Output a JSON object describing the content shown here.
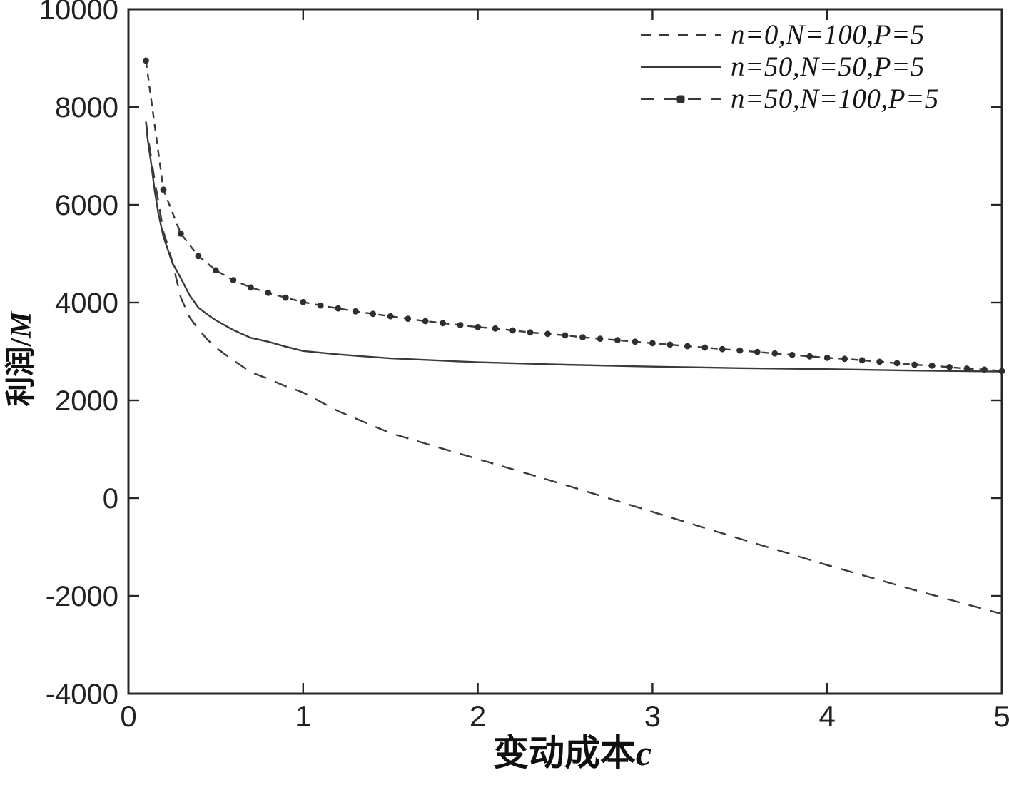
{
  "page": {
    "background": "#ffffff"
  },
  "chart_data": {
    "type": "line",
    "title": "",
    "xlabel": "变动成本c",
    "xlabel_cjk": "变动成本",
    "xlabel_var": "c",
    "ylabel": "利润/M",
    "ylabel_cjk": "利润/",
    "ylabel_var": "M",
    "xlim": [
      0,
      5
    ],
    "ylim": [
      -4000,
      10000
    ],
    "x_ticks": [
      "0",
      "1",
      "2",
      "3",
      "4",
      "5"
    ],
    "x_tick_values": [
      0,
      1,
      2,
      3,
      4,
      5
    ],
    "y_ticks": [
      "10000",
      "8000",
      "6000",
      "4000",
      "2000",
      "0",
      "-2000",
      "-4000"
    ],
    "y_tick_values": [
      10000,
      8000,
      6000,
      4000,
      2000,
      0,
      -2000,
      -4000
    ],
    "grid": false,
    "legend_position": "top-right",
    "colors": {
      "line": "#3a3a3a",
      "axis": "#262626",
      "tick_text": "#222222",
      "marker": "#2e2e2e"
    },
    "series": [
      {
        "name": "n=0,N=100,P=5",
        "style": "dashed",
        "marker": "none",
        "points": [
          [
            0.1,
            7700
          ],
          [
            0.12,
            7200
          ],
          [
            0.15,
            6500
          ],
          [
            0.17,
            6100
          ],
          [
            0.2,
            5450
          ],
          [
            0.22,
            5220
          ],
          [
            0.25,
            4850
          ],
          [
            0.3,
            4100
          ],
          [
            0.35,
            3700
          ],
          [
            0.4,
            3460
          ],
          [
            0.45,
            3250
          ],
          [
            0.5,
            3080
          ],
          [
            0.6,
            2820
          ],
          [
            0.7,
            2580
          ],
          [
            0.8,
            2440
          ],
          [
            0.9,
            2290
          ],
          [
            1.0,
            2160
          ],
          [
            1.2,
            1780
          ],
          [
            1.5,
            1330
          ],
          [
            1.8,
            1010
          ],
          [
            2.0,
            800
          ],
          [
            2.2,
            590
          ],
          [
            2.5,
            270
          ],
          [
            3.0,
            -280
          ],
          [
            3.5,
            -830
          ],
          [
            4.0,
            -1370
          ],
          [
            4.5,
            -1880
          ],
          [
            5.0,
            -2370
          ]
        ]
      },
      {
        "name": "n=50,N=50,P=5",
        "style": "solid",
        "marker": "none",
        "points": [
          [
            0.1,
            7700
          ],
          [
            0.11,
            7350
          ],
          [
            0.13,
            6850
          ],
          [
            0.15,
            6300
          ],
          [
            0.17,
            5850
          ],
          [
            0.2,
            5350
          ],
          [
            0.25,
            4820
          ],
          [
            0.3,
            4500
          ],
          [
            0.35,
            4150
          ],
          [
            0.4,
            3900
          ],
          [
            0.45,
            3760
          ],
          [
            0.5,
            3640
          ],
          [
            0.6,
            3440
          ],
          [
            0.7,
            3280
          ],
          [
            0.8,
            3200
          ],
          [
            0.9,
            3100
          ],
          [
            1.0,
            3010
          ],
          [
            1.2,
            2940
          ],
          [
            1.5,
            2860
          ],
          [
            2.0,
            2780
          ],
          [
            2.5,
            2730
          ],
          [
            3.0,
            2690
          ],
          [
            3.5,
            2660
          ],
          [
            4.0,
            2640
          ],
          [
            4.5,
            2610
          ],
          [
            5.0,
            2590
          ]
        ]
      },
      {
        "name": "n=50,N=100,P=5",
        "style": "dash-marker",
        "marker": "dot",
        "points": [
          [
            0.1,
            8950
          ],
          [
            0.2,
            6310
          ],
          [
            0.3,
            5410
          ],
          [
            0.4,
            4950
          ],
          [
            0.5,
            4660
          ],
          [
            0.6,
            4460
          ],
          [
            0.7,
            4310
          ],
          [
            0.8,
            4200
          ],
          [
            0.9,
            4100
          ],
          [
            1.0,
            4010
          ],
          [
            1.1,
            3940
          ],
          [
            1.2,
            3880
          ],
          [
            1.3,
            3820
          ],
          [
            1.4,
            3770
          ],
          [
            1.5,
            3720
          ],
          [
            1.6,
            3670
          ],
          [
            1.7,
            3620
          ],
          [
            1.8,
            3580
          ],
          [
            1.9,
            3540
          ],
          [
            2.0,
            3500
          ],
          [
            2.1,
            3470
          ],
          [
            2.2,
            3430
          ],
          [
            2.3,
            3390
          ],
          [
            2.4,
            3360
          ],
          [
            2.5,
            3330
          ],
          [
            2.6,
            3290
          ],
          [
            2.7,
            3260
          ],
          [
            2.8,
            3230
          ],
          [
            2.9,
            3200
          ],
          [
            3.0,
            3170
          ],
          [
            3.1,
            3140
          ],
          [
            3.2,
            3110
          ],
          [
            3.3,
            3080
          ],
          [
            3.4,
            3050
          ],
          [
            3.5,
            3020
          ],
          [
            3.6,
            2990
          ],
          [
            3.7,
            2960
          ],
          [
            3.8,
            2930
          ],
          [
            3.9,
            2900
          ],
          [
            4.0,
            2870
          ],
          [
            4.1,
            2850
          ],
          [
            4.2,
            2820
          ],
          [
            4.3,
            2790
          ],
          [
            4.4,
            2760
          ],
          [
            4.5,
            2730
          ],
          [
            4.6,
            2710
          ],
          [
            4.7,
            2680
          ],
          [
            4.8,
            2650
          ],
          [
            4.9,
            2630
          ],
          [
            5.0,
            2600
          ]
        ]
      }
    ]
  }
}
